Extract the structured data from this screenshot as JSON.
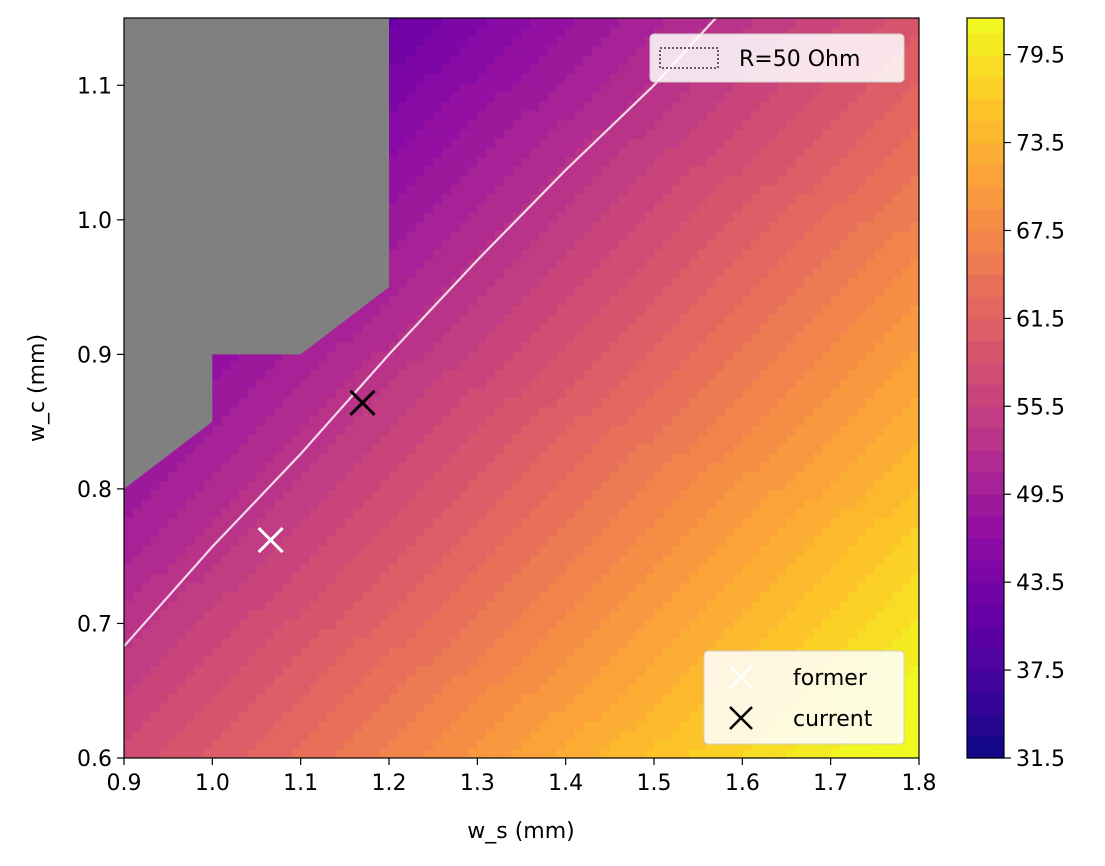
{
  "chart_data": {
    "type": "heatmap",
    "xlabel": "w_s (mm)",
    "ylabel": "w_c (mm)",
    "xlim": [
      0.9,
      1.8
    ],
    "ylim": [
      0.6,
      1.15
    ],
    "x_ticks": [
      "0.9",
      "1.0",
      "1.1",
      "1.2",
      "1.3",
      "1.4",
      "1.5",
      "1.6",
      "1.7",
      "1.8"
    ],
    "y_ticks": [
      "0.6",
      "0.7",
      "0.8",
      "0.9",
      "1.0",
      "1.1"
    ],
    "colorbar": {
      "colormap": "plasma",
      "range": [
        31.5,
        82.0
      ],
      "tick_labels": [
        "31.5",
        "37.5",
        "43.5",
        "49.5",
        "55.5",
        "61.5",
        "67.5",
        "73.5",
        "79.5"
      ]
    },
    "field_model": {
      "description": "impedance approx linear in w_s and w_c",
      "z_at_origin": 57.5,
      "origin": [
        0.9,
        0.6
      ],
      "dz_dws": 29.7,
      "dz_dwc": -45.0
    },
    "invalid_region_color": "#808080",
    "invalid_region_boundary": [
      [
        0.9,
        0.8
      ],
      [
        1.0,
        0.85
      ],
      [
        1.0,
        0.9
      ],
      [
        1.1,
        0.9
      ],
      [
        1.2,
        0.95
      ],
      [
        1.2,
        1.15
      ],
      [
        0.9,
        1.15
      ]
    ],
    "contour": {
      "label": "R=50 Ohm",
      "color": "#f4d8ea",
      "points": [
        [
          0.9,
          0.683
        ],
        [
          1.0,
          0.757
        ],
        [
          1.1,
          0.826
        ],
        [
          1.2,
          0.9
        ],
        [
          1.3,
          0.97
        ],
        [
          1.4,
          1.037
        ],
        [
          1.5,
          1.1
        ],
        [
          1.57,
          1.15
        ]
      ]
    },
    "markers": [
      {
        "name": "former",
        "x": 1.066,
        "y": 0.762,
        "color": "#ffffff"
      },
      {
        "name": "current",
        "x": 1.17,
        "y": 0.864,
        "color": "#000000"
      }
    ],
    "legend_contour_position": "top-right",
    "legend_markers_position": "bottom-right"
  }
}
